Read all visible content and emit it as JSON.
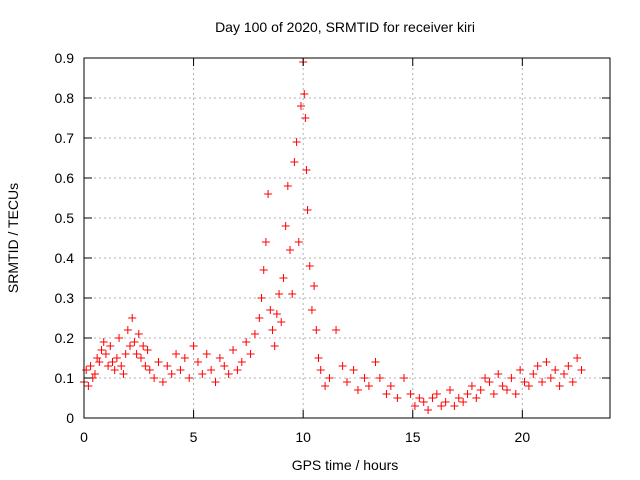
{
  "chart_data": {
    "type": "scatter",
    "title": "Day 100 of 2020, SRMTID for receiver kiri",
    "xlabel": "GPS time / hours",
    "ylabel": "SRMTID / TECUs",
    "xlim": [
      0,
      24
    ],
    "ylim": [
      0,
      0.9
    ],
    "xticks": [
      0,
      5,
      10,
      15,
      20
    ],
    "yticks": [
      0,
      0.1,
      0.2,
      0.3,
      0.4,
      0.5,
      0.6,
      0.7,
      0.8,
      0.9
    ],
    "xtick_labels": [
      "0",
      "5",
      "10",
      "15",
      "20"
    ],
    "ytick_labels": [
      "0",
      "0.1",
      "0.2",
      "0.3",
      "0.4",
      "0.5",
      "0.6",
      "0.7",
      "0.8",
      "0.9"
    ],
    "grid": true,
    "marker": "+",
    "series": [
      {
        "name": "SRMTID",
        "color": "#ff0000",
        "x": [
          0.0,
          0.1,
          0.2,
          0.3,
          0.4,
          0.5,
          0.6,
          0.7,
          0.8,
          0.9,
          1.0,
          1.1,
          1.2,
          1.3,
          1.4,
          1.5,
          1.6,
          1.7,
          1.8,
          1.9,
          2.0,
          2.1,
          2.2,
          2.3,
          2.4,
          2.5,
          2.6,
          2.7,
          2.8,
          2.9,
          3.0,
          3.2,
          3.4,
          3.6,
          3.8,
          4.0,
          4.2,
          4.4,
          4.6,
          4.8,
          5.0,
          5.2,
          5.4,
          5.6,
          5.8,
          6.0,
          6.2,
          6.4,
          6.6,
          6.8,
          7.0,
          7.2,
          7.4,
          7.6,
          7.8,
          8.0,
          8.1,
          8.2,
          8.3,
          8.4,
          8.5,
          8.6,
          8.7,
          8.8,
          8.9,
          9.0,
          9.1,
          9.2,
          9.3,
          9.4,
          9.5,
          9.6,
          9.7,
          9.8,
          9.9,
          10.0,
          10.05,
          10.1,
          10.15,
          10.2,
          10.3,
          10.4,
          10.5,
          10.6,
          10.7,
          10.8,
          11.0,
          11.2,
          11.5,
          11.8,
          12.0,
          12.3,
          12.5,
          12.8,
          13.0,
          13.3,
          13.5,
          13.8,
          14.0,
          14.3,
          14.6,
          14.9,
          15.1,
          15.3,
          15.5,
          15.7,
          15.9,
          16.1,
          16.3,
          16.5,
          16.7,
          16.9,
          17.1,
          17.3,
          17.5,
          17.7,
          17.9,
          18.1,
          18.3,
          18.5,
          18.7,
          18.9,
          19.1,
          19.3,
          19.5,
          19.7,
          19.9,
          20.1,
          20.3,
          20.5,
          20.7,
          20.9,
          21.1,
          21.3,
          21.5,
          21.7,
          21.9,
          22.1,
          22.3,
          22.5,
          22.7
        ],
        "y": [
          0.09,
          0.12,
          0.08,
          0.13,
          0.1,
          0.11,
          0.15,
          0.14,
          0.17,
          0.19,
          0.16,
          0.13,
          0.18,
          0.14,
          0.12,
          0.15,
          0.2,
          0.13,
          0.11,
          0.16,
          0.22,
          0.18,
          0.25,
          0.19,
          0.16,
          0.21,
          0.15,
          0.18,
          0.13,
          0.17,
          0.12,
          0.1,
          0.14,
          0.09,
          0.13,
          0.11,
          0.16,
          0.12,
          0.15,
          0.1,
          0.18,
          0.14,
          0.11,
          0.16,
          0.12,
          0.09,
          0.15,
          0.13,
          0.11,
          0.17,
          0.12,
          0.14,
          0.19,
          0.16,
          0.21,
          0.25,
          0.3,
          0.37,
          0.44,
          0.56,
          0.27,
          0.22,
          0.18,
          0.26,
          0.31,
          0.24,
          0.35,
          0.48,
          0.58,
          0.42,
          0.31,
          0.64,
          0.69,
          0.44,
          0.78,
          0.89,
          0.81,
          0.75,
          0.62,
          0.52,
          0.38,
          0.27,
          0.33,
          0.22,
          0.15,
          0.12,
          0.08,
          0.1,
          0.22,
          0.13,
          0.09,
          0.12,
          0.07,
          0.1,
          0.08,
          0.14,
          0.1,
          0.06,
          0.08,
          0.05,
          0.1,
          0.06,
          0.03,
          0.05,
          0.04,
          0.02,
          0.05,
          0.06,
          0.03,
          0.04,
          0.07,
          0.03,
          0.05,
          0.04,
          0.06,
          0.08,
          0.05,
          0.07,
          0.1,
          0.09,
          0.06,
          0.11,
          0.08,
          0.07,
          0.1,
          0.06,
          0.12,
          0.09,
          0.08,
          0.11,
          0.13,
          0.09,
          0.14,
          0.1,
          0.12,
          0.08,
          0.11,
          0.13,
          0.09,
          0.15,
          0.12
        ]
      }
    ]
  }
}
